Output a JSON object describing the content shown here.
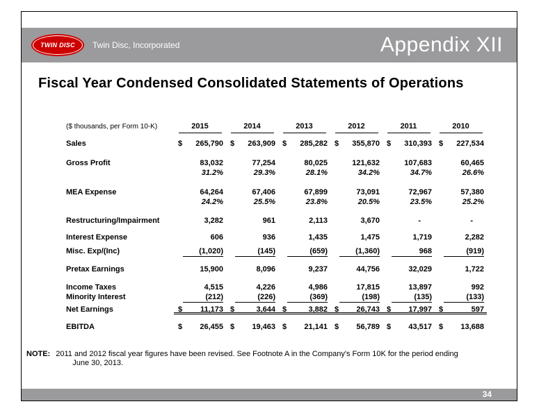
{
  "colors": {
    "header_gray": "#9B9B9D",
    "logo_red": "#CC0000"
  },
  "header": {
    "logo_text": "TWIN DISC",
    "company": "Twin Disc, Incorporated",
    "appendix": "Appendix XII"
  },
  "title": "Fiscal Year Condensed Consolidated Statements of Operations",
  "table": {
    "unit_label": "($ thousands, per Form 10-K)",
    "years": [
      "2015",
      "2014",
      "2013",
      "2012",
      "2011",
      "2010"
    ],
    "rows": [
      {
        "label": "Sales",
        "dollar": true,
        "values": [
          "265,790",
          "263,909",
          "285,282",
          "355,870",
          "310,393",
          "227,534"
        ]
      },
      {
        "label": "Gross Profit",
        "values": [
          "83,032",
          "77,254",
          "80,025",
          "121,632",
          "107,683",
          "60,465"
        ]
      },
      {
        "label": "",
        "pct": true,
        "values": [
          "31.2%",
          "29.3%",
          "28.1%",
          "34.2%",
          "34.7%",
          "26.6%"
        ]
      },
      {
        "label": "MEA Expense",
        "values": [
          "64,264",
          "67,406",
          "67,899",
          "73,091",
          "72,967",
          "57,380"
        ]
      },
      {
        "label": "",
        "pct": true,
        "values": [
          "24.2%",
          "25.5%",
          "23.8%",
          "20.5%",
          "23.5%",
          "25.2%"
        ]
      },
      {
        "label": "Restructuring/Impairment",
        "values": [
          "3,282",
          "961",
          "2,113",
          "3,670",
          "-",
          "-"
        ]
      },
      {
        "label": "Interest Expense",
        "values": [
          "606",
          "936",
          "1,435",
          "1,475",
          "1,719",
          "2,282"
        ]
      },
      {
        "label": "Misc. Exp/(Inc)",
        "underline": true,
        "values": [
          "(1,020)",
          "(145)",
          "(659)",
          "(1,360)",
          "968",
          "(919)"
        ]
      },
      {
        "label": "Pretax Earnings",
        "values": [
          "15,900",
          "8,096",
          "9,237",
          "44,756",
          "32,029",
          "1,722"
        ]
      },
      {
        "label": "Income Taxes",
        "values": [
          "4,515",
          "4,226",
          "4,986",
          "17,815",
          "13,897",
          "992"
        ]
      },
      {
        "label": "Minority Interest",
        "underline": true,
        "values": [
          "(212)",
          "(226)",
          "(369)",
          "(198)",
          "(135)",
          "(133)"
        ]
      },
      {
        "label": "Net Earnings",
        "dollar": true,
        "double_underline": true,
        "values": [
          "11,173",
          "3,644",
          "3,882",
          "26,743",
          "17,997",
          "597"
        ]
      },
      {
        "label": "EBITDA",
        "dollar": true,
        "values": [
          "26,455",
          "19,463",
          "21,141",
          "56,789",
          "43,517",
          "13,688"
        ]
      }
    ]
  },
  "note": {
    "label": "NOTE:",
    "line1": "2011 and 2012 fiscal year figures have been revised.  See Footnote A in the Company's Form 10K for the period ending",
    "line2": "June 30, 2013."
  },
  "page_number": "34"
}
